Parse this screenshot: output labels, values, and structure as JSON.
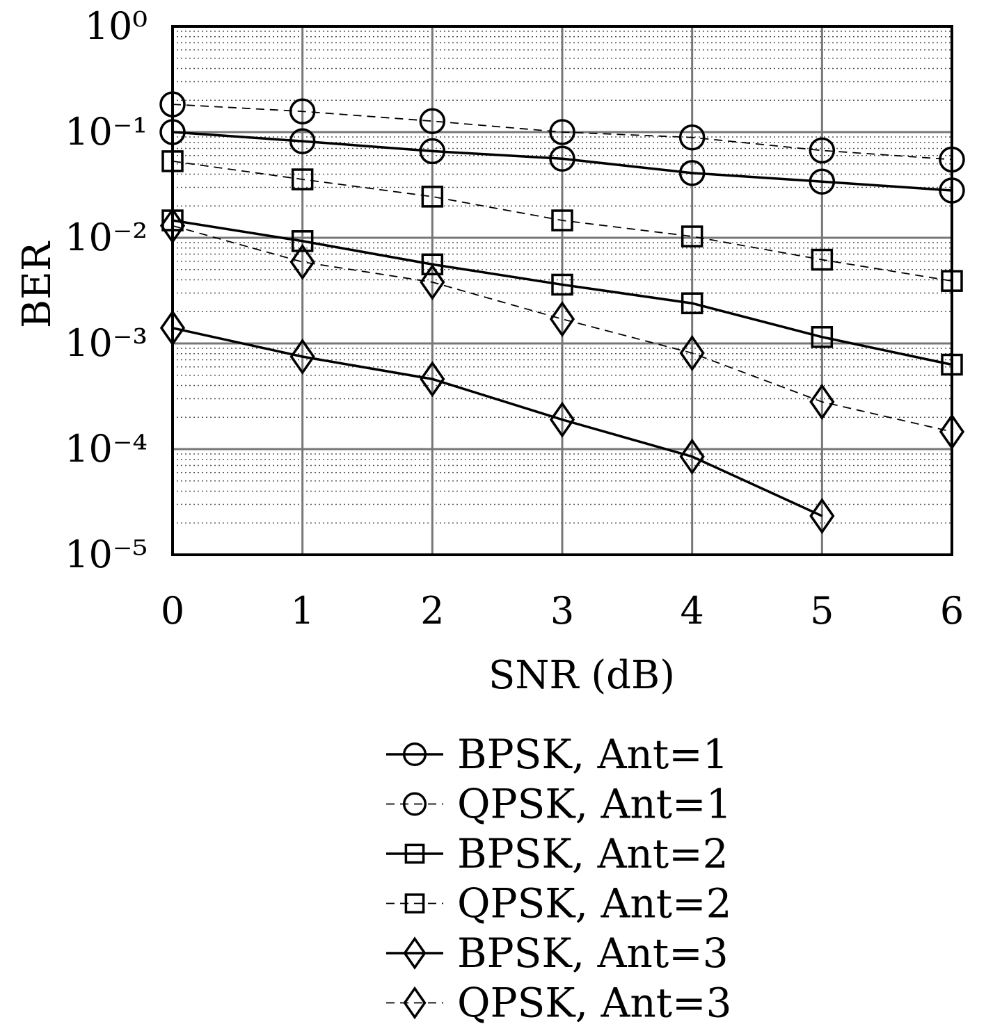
{
  "chart_data": {
    "type": "line",
    "x_label": "SNR (dB)",
    "y_label": "BER",
    "x": [
      0,
      1,
      2,
      3,
      4,
      5,
      6
    ],
    "xlim": [
      0,
      6
    ],
    "xticks": [
      0,
      1,
      2,
      3,
      4,
      5,
      6
    ],
    "ylim": [
      1e-05,
      1
    ],
    "y_scale": "log",
    "yticks": [
      {
        "value": 1,
        "label": "10⁰"
      },
      {
        "value": 0.1,
        "label": "10⁻¹"
      },
      {
        "value": 0.01,
        "label": "10⁻²"
      },
      {
        "value": 0.001,
        "label": "10⁻³"
      },
      {
        "value": 0.0001,
        "label": "10⁻⁴"
      },
      {
        "value": 1e-05,
        "label": "10⁻⁵"
      }
    ],
    "grid": true,
    "minor_grid": true,
    "legend": "below",
    "series": [
      {
        "name": "BPSK, Ant=1",
        "color": "#000000",
        "line": "solid",
        "marker": "circle",
        "values": [
          0.1,
          0.082,
          0.066,
          0.056,
          0.041,
          0.034,
          0.028
        ]
      },
      {
        "name": "QPSK, Ant=1",
        "color": "#000000",
        "line": "dashed",
        "marker": "circle",
        "values": [
          0.183,
          0.157,
          0.127,
          0.1,
          0.089,
          0.067,
          0.055
        ]
      },
      {
        "name": "BPSK, Ant=2",
        "color": "#000000",
        "line": "solid",
        "marker": "square",
        "values": [
          0.0146,
          0.0093,
          0.0056,
          0.0036,
          0.0024,
          0.00115,
          0.00063
        ]
      },
      {
        "name": "QPSK, Ant=2",
        "color": "#000000",
        "line": "dashed",
        "marker": "square",
        "values": [
          0.053,
          0.0357,
          0.0245,
          0.0146,
          0.0103,
          0.0062,
          0.0039
        ]
      },
      {
        "name": "BPSK, Ant=3",
        "color": "#000000",
        "line": "solid",
        "marker": "diamond",
        "values": [
          0.0014,
          0.00075,
          0.00046,
          0.00019,
          8.5e-05,
          2.33e-05,
          null
        ]
      },
      {
        "name": "QPSK, Ant=3",
        "color": "#000000",
        "line": "dashed",
        "marker": "diamond",
        "values": [
          0.013,
          0.0059,
          0.0038,
          0.0017,
          0.00081,
          0.00028,
          0.000146
        ]
      }
    ]
  }
}
